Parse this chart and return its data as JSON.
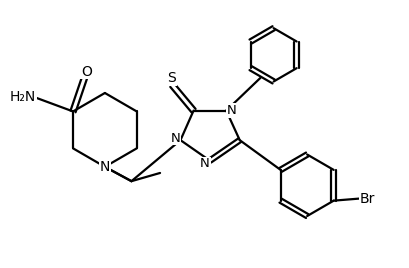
{
  "background_color": "#ffffff",
  "line_color": "#000000",
  "line_width": 1.6,
  "font_size": 10,
  "figsize": [
    4.1,
    2.68
  ],
  "dpi": 100,
  "xlim": [
    0,
    10
  ],
  "ylim": [
    0,
    6.5
  ]
}
